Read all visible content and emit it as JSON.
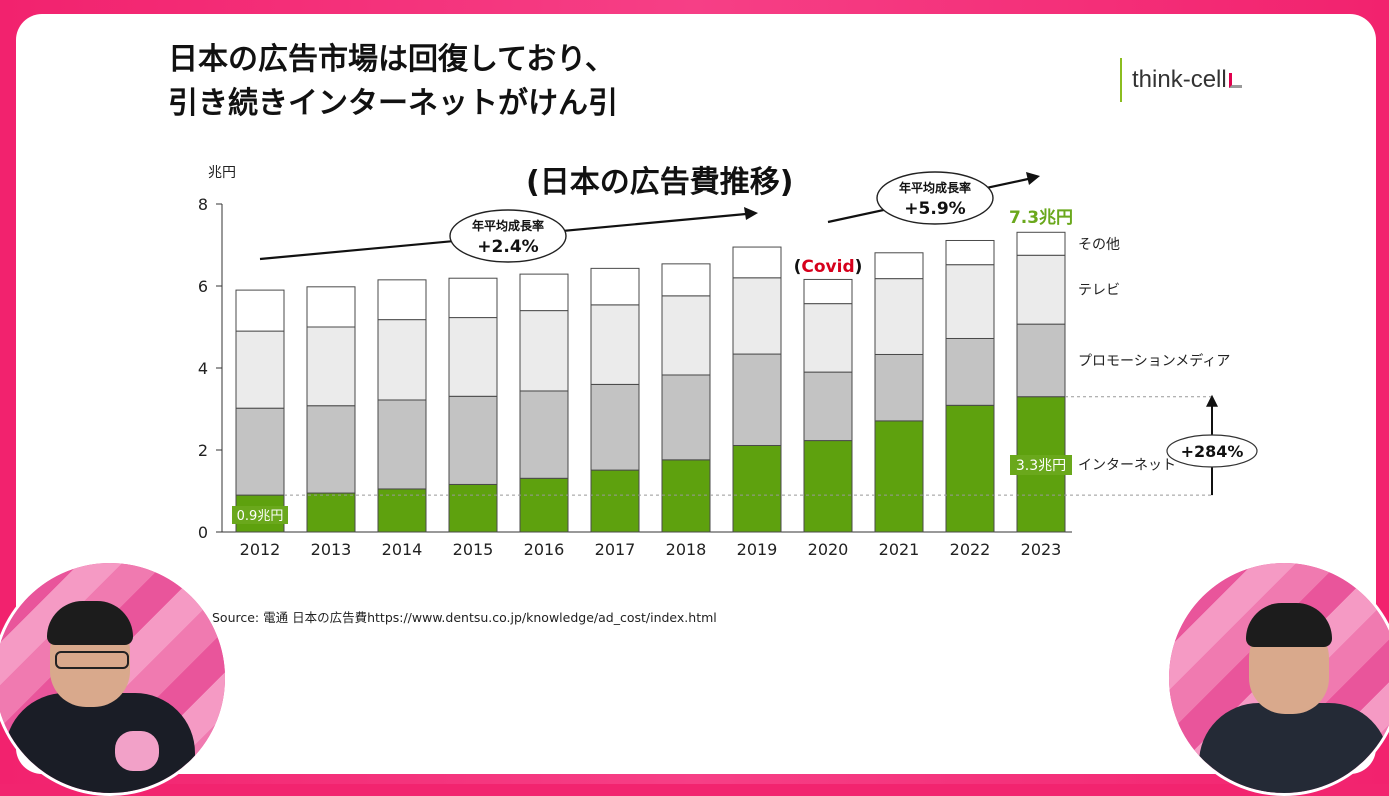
{
  "slide": {
    "title_line1": "日本の広告市場は回復しており、",
    "title_line2": "引き続きインターネットがけん引",
    "logo_text": "think-cell",
    "source": "Source: 電通 日本の広告費https://www.dentsu.co.jp/knowledge/ad_cost/index.html"
  },
  "chart_data": {
    "type": "bar",
    "stacked": true,
    "title": "(日本の広告費推移)",
    "ylabel": "兆円",
    "ylim": [
      0,
      8
    ],
    "yticks": [
      0,
      2,
      4,
      6,
      8
    ],
    "grid": false,
    "legend_position": "right",
    "categories": [
      "2012",
      "2013",
      "2014",
      "2015",
      "2016",
      "2017",
      "2018",
      "2019",
      "2020",
      "2021",
      "2022",
      "2023"
    ],
    "series": [
      {
        "name": "インターネット",
        "color": "#5ea10e",
        "values": [
          0.9,
          0.95,
          1.05,
          1.16,
          1.31,
          1.51,
          1.76,
          2.11,
          2.23,
          2.71,
          3.09,
          3.3
        ]
      },
      {
        "name": "プロモーションメディア",
        "color": "#c3c3c3",
        "values": [
          2.12,
          2.13,
          2.17,
          2.15,
          2.13,
          2.09,
          2.07,
          2.23,
          1.67,
          1.62,
          1.63,
          1.77
        ]
      },
      {
        "name": "テレビ",
        "color": "#ebebeb",
        "values": [
          1.88,
          1.92,
          1.96,
          1.92,
          1.96,
          1.94,
          1.93,
          1.86,
          1.67,
          1.85,
          1.8,
          1.68
        ]
      },
      {
        "name": "その他",
        "color": "#ffffff",
        "values": [
          1.0,
          0.98,
          0.97,
          0.96,
          0.89,
          0.89,
          0.78,
          0.75,
          0.59,
          0.63,
          0.59,
          0.56
        ]
      }
    ],
    "annotations": {
      "cagr1_label": "年平均成長率",
      "cagr1_value": "+2.4%",
      "cagr2_label": "年平均成長率",
      "cagr2_value": "+5.9%",
      "covid_open": "(",
      "covid_text": "Covid",
      "covid_close": ")",
      "total_2023": "7.3兆円",
      "internet_2012": "0.9兆円",
      "internet_2023": "3.3兆円",
      "growth": "+284%"
    },
    "colors": {
      "accent_green": "#6aa81c",
      "covid_red": "#d6001c"
    }
  }
}
